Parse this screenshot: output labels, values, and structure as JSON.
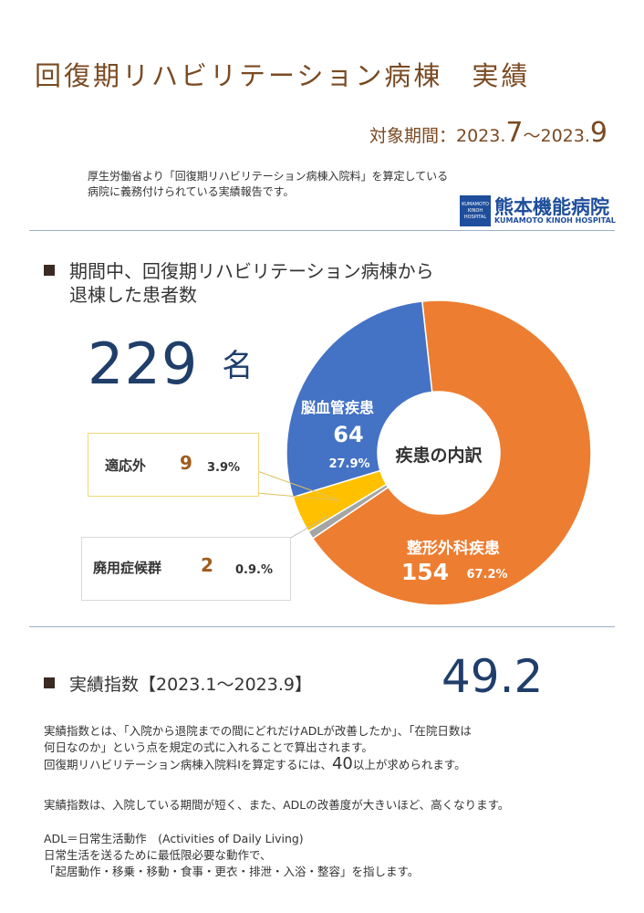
{
  "header": {
    "title": "回復期リハビリテーション病棟　実績",
    "period_label": "対象期間：",
    "period_start_prefix": "2023.",
    "period_start_month": "7",
    "period_sep": "～2023.",
    "period_end_month": "9",
    "intro_line1": "厚生労働省より「回復期リハビリテーション病棟入院料」を算定している",
    "intro_line2": "病院に義務付けられている実績報告です。"
  },
  "logo": {
    "box_line1": "KUMAMOTO",
    "box_line2": "KINOH",
    "box_line3": "HOSPITAL",
    "name": "熊本機能病院",
    "name_en": "KUMAMOTO KINOH HOSPITAL",
    "color": "#1f4e9c"
  },
  "section1": {
    "line1": "期間中、回復期リハビリテーション病棟から",
    "line2": "退棟した患者数",
    "count": "229",
    "unit": "名"
  },
  "chart_data": {
    "type": "pie",
    "center_label": "疾患の内訳",
    "slices": [
      {
        "label": "整形外科疾患",
        "value": 154,
        "percent": "67.2%",
        "color": "#ed7d31"
      },
      {
        "label": "廃用症候群",
        "value": 2,
        "percent": "0.9.%",
        "color": "#a5a5a5"
      },
      {
        "label": "適応外",
        "value": 9,
        "percent": "3.9%",
        "color": "#ffc000"
      },
      {
        "label": "脳血管疾患",
        "value": 64,
        "percent": "27.9%",
        "color": "#4472c4"
      }
    ]
  },
  "section2": {
    "label": "実績指数【2023.1～2023.9】",
    "value": "49.2",
    "p1_line1": "実績指数とは、「入院から退院までの間にどれだけADLが改善したか」、「在院日数は",
    "p1_line2": "何日なのか」という点を規定の式に入れることで算出されます。",
    "p2_a": "回復期リハビリテーション病棟入院料Ⅰを算定するには、",
    "p2_num": "40",
    "p2_b": "以上が求められます。",
    "p3": "実績指数は、入院している期間が短く、また、ADLの改善度が大きいほど、高くなります。",
    "adl_title": "ADL＝日常生活動作　(Activities of Daily Living)",
    "adl_line1": "日常生活を送るために最低限必要な動作で、",
    "adl_line2": "「起居動作・移乗・移動・食事・更衣・排泄・入浴・整容」を指します。"
  }
}
